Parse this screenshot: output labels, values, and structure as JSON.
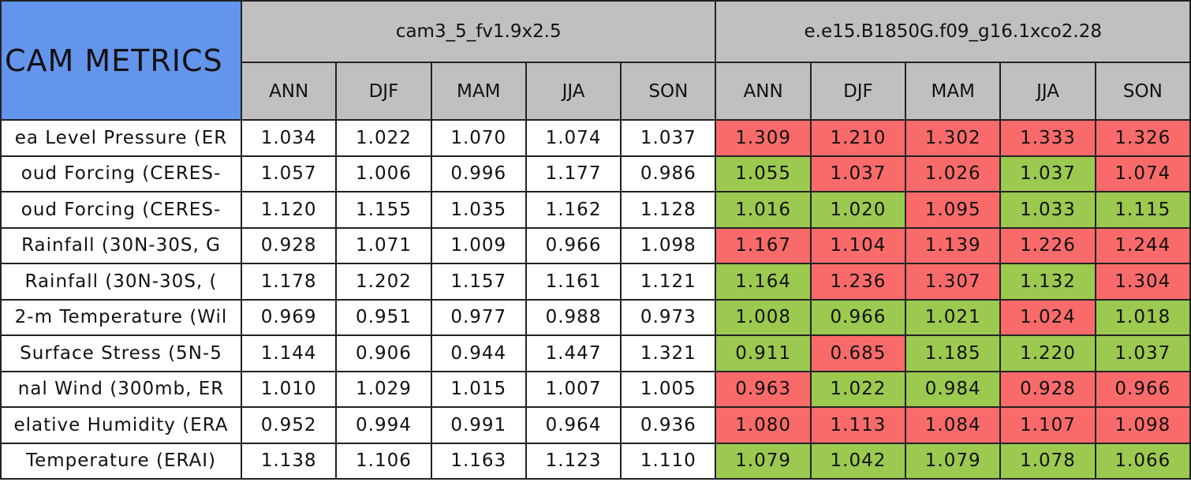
{
  "table": {
    "title": "CAM METRICS",
    "models": [
      "cam3_5_fv1.9x2.5",
      "e.e15.B1850G.f09_g16.1xco2.28"
    ],
    "seasons": [
      "ANN",
      "DJF",
      "MAM",
      "JJA",
      "SON"
    ],
    "palette": {
      "red": "#f96b6b",
      "green": "#9cc94f"
    },
    "rows": [
      {
        "label": "ea Level Pressure (ER",
        "model1": [
          "1.034",
          "1.022",
          "1.070",
          "1.074",
          "1.037"
        ],
        "model2": [
          "1.309",
          "1.210",
          "1.302",
          "1.333",
          "1.326"
        ],
        "model2_colors": [
          "red",
          "red",
          "red",
          "red",
          "red"
        ]
      },
      {
        "label": "oud Forcing (CERES-",
        "model1": [
          "1.057",
          "1.006",
          "0.996",
          "1.177",
          "0.986"
        ],
        "model2": [
          "1.055",
          "1.037",
          "1.026",
          "1.037",
          "1.074"
        ],
        "model2_colors": [
          "green",
          "red",
          "red",
          "green",
          "red"
        ]
      },
      {
        "label": "oud Forcing (CERES-",
        "model1": [
          "1.120",
          "1.155",
          "1.035",
          "1.162",
          "1.128"
        ],
        "model2": [
          "1.016",
          "1.020",
          "1.095",
          "1.033",
          "1.115"
        ],
        "model2_colors": [
          "green",
          "green",
          "red",
          "green",
          "green"
        ]
      },
      {
        "label": "Rainfall (30N-30S, G",
        "model1": [
          "0.928",
          "1.071",
          "1.009",
          "0.966",
          "1.098"
        ],
        "model2": [
          "1.167",
          "1.104",
          "1.139",
          "1.226",
          "1.244"
        ],
        "model2_colors": [
          "red",
          "red",
          "red",
          "red",
          "red"
        ]
      },
      {
        "label": "Rainfall (30N-30S, (",
        "model1": [
          "1.178",
          "1.202",
          "1.157",
          "1.161",
          "1.121"
        ],
        "model2": [
          "1.164",
          "1.236",
          "1.307",
          "1.132",
          "1.304"
        ],
        "model2_colors": [
          "green",
          "red",
          "red",
          "green",
          "red"
        ]
      },
      {
        "label": "2-m Temperature (Wil",
        "model1": [
          "0.969",
          "0.951",
          "0.977",
          "0.988",
          "0.973"
        ],
        "model2": [
          "1.008",
          "0.966",
          "1.021",
          "1.024",
          "1.018"
        ],
        "model2_colors": [
          "green",
          "green",
          "green",
          "red",
          "green"
        ]
      },
      {
        "label": "Surface Stress (5N-5",
        "model1": [
          "1.144",
          "0.906",
          "0.944",
          "1.447",
          "1.321"
        ],
        "model2": [
          "0.911",
          "0.685",
          "1.185",
          "1.220",
          "1.037"
        ],
        "model2_colors": [
          "green",
          "red",
          "green",
          "green",
          "green"
        ]
      },
      {
        "label": "nal Wind (300mb, ER",
        "model1": [
          "1.010",
          "1.029",
          "1.015",
          "1.007",
          "1.005"
        ],
        "model2": [
          "0.963",
          "1.022",
          "0.984",
          "0.928",
          "0.966"
        ],
        "model2_colors": [
          "red",
          "green",
          "green",
          "red",
          "red"
        ]
      },
      {
        "label": "elative Humidity (ERA",
        "model1": [
          "0.952",
          "0.994",
          "0.991",
          "0.964",
          "0.936"
        ],
        "model2": [
          "1.080",
          "1.113",
          "1.084",
          "1.107",
          "1.098"
        ],
        "model2_colors": [
          "red",
          "red",
          "red",
          "red",
          "red"
        ]
      },
      {
        "label": "Temperature (ERAI)",
        "model1": [
          "1.138",
          "1.106",
          "1.163",
          "1.123",
          "1.110"
        ],
        "model2": [
          "1.079",
          "1.042",
          "1.079",
          "1.078",
          "1.066"
        ],
        "model2_colors": [
          "green",
          "green",
          "green",
          "green",
          "green"
        ]
      }
    ]
  }
}
